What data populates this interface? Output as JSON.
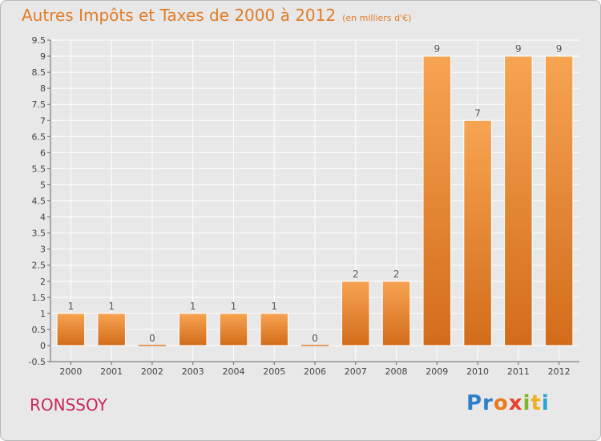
{
  "header": {
    "title": "Autres Impôts et Taxes de 2000 à 2012",
    "unit": "(en milliers d'€)"
  },
  "footer": {
    "place": "RONSSOY",
    "logo_parts": [
      "Pr",
      "o",
      "x",
      "i",
      "t",
      "i"
    ]
  },
  "colors": {
    "bar_top": "#f7a452",
    "bar_bottom": "#d26c1a",
    "title": "#e07c26",
    "place": "#c8285a",
    "plot_bg": "#e8e8e8",
    "grid": "#ffffff"
  },
  "chart_data": {
    "type": "bar",
    "title": "Autres Impôts et Taxes de 2000 à 2012",
    "subtitle": "(en milliers d'€)",
    "categories": [
      "2000",
      "2001",
      "2002",
      "2003",
      "2004",
      "2005",
      "2006",
      "2007",
      "2008",
      "2009",
      "2010",
      "2011",
      "2012"
    ],
    "values": [
      1,
      1,
      0,
      1,
      1,
      1,
      0,
      2,
      2,
      9,
      7,
      9,
      9
    ],
    "data_labels": [
      "1",
      "1",
      "0",
      "1",
      "1",
      "1",
      "0",
      "2",
      "2",
      "9",
      "7",
      "9",
      "9"
    ],
    "ylim": [
      -0.5,
      9.5
    ],
    "yticks": [
      "-0.5",
      "0",
      "0.5",
      "1",
      "1.5",
      "2",
      "2.5",
      "3",
      "3.5",
      "4",
      "4.5",
      "5",
      "5.5",
      "6",
      "6.5",
      "7",
      "7.5",
      "8",
      "8.5",
      "9",
      "9.5"
    ],
    "xlabel": "",
    "ylabel": "",
    "grid": true,
    "legend": "none"
  }
}
